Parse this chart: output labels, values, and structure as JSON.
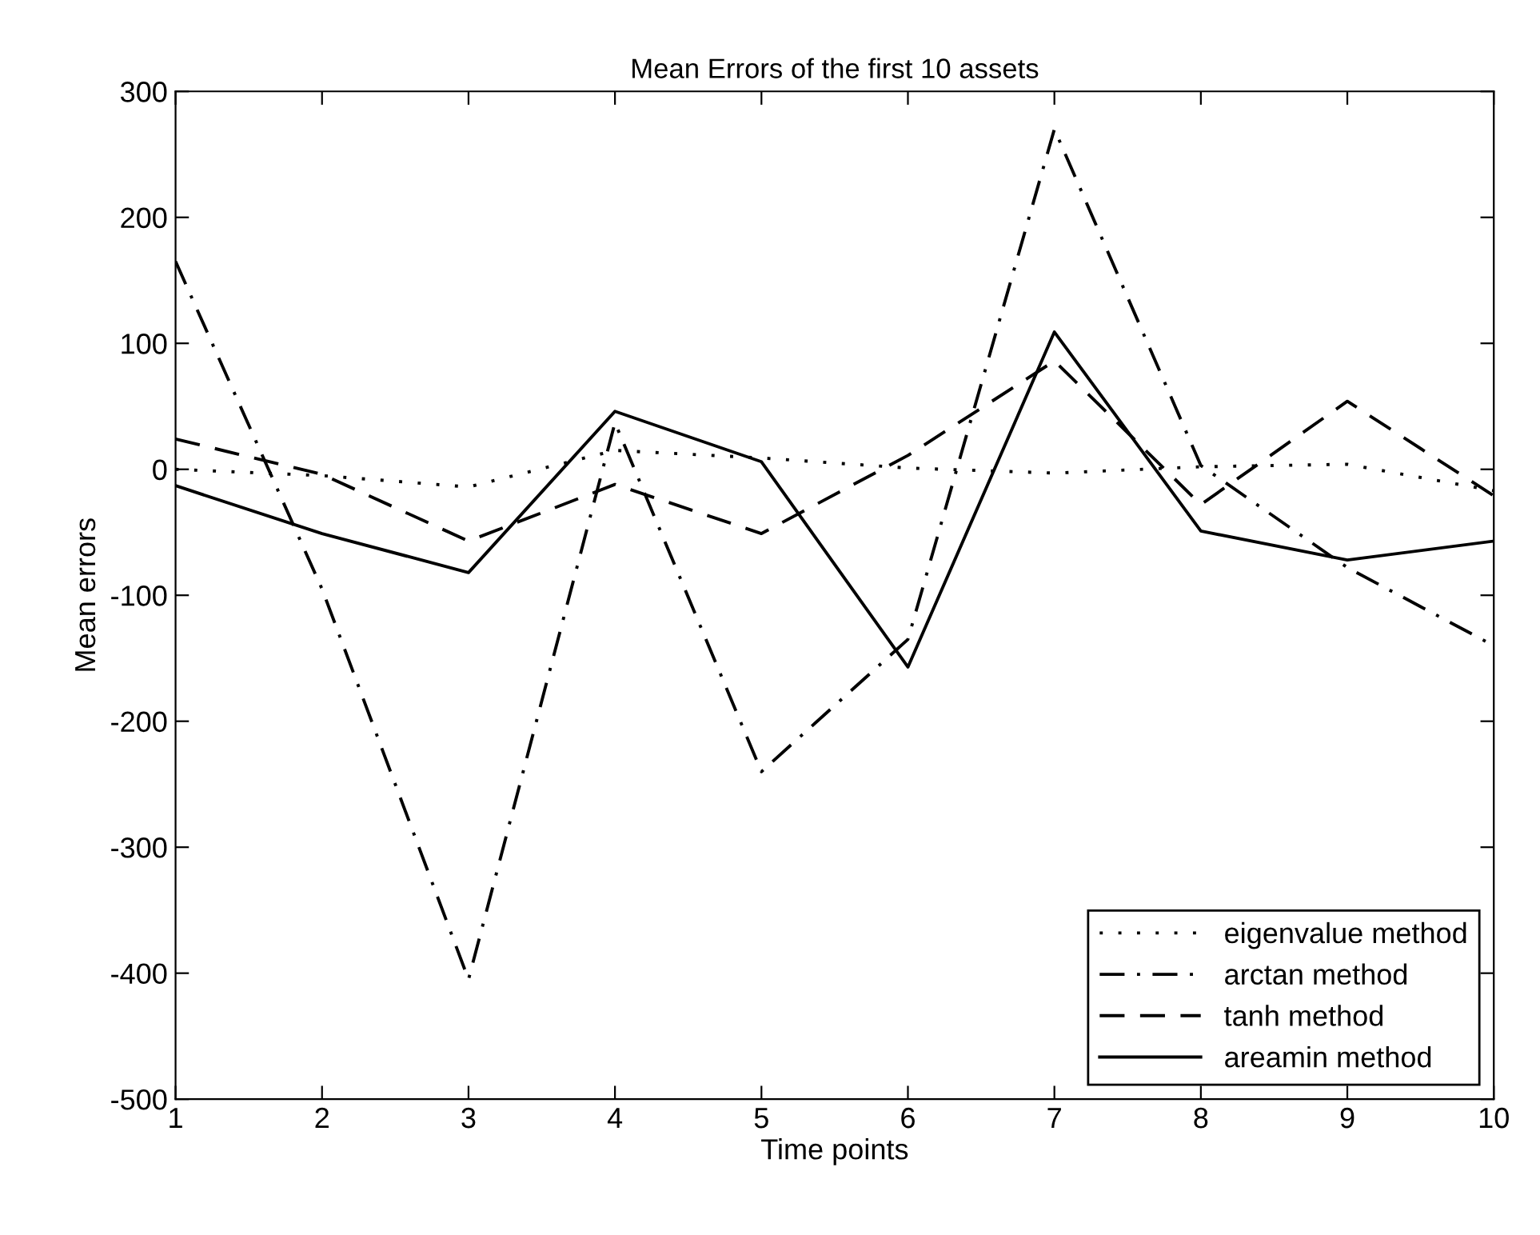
{
  "chart_data": {
    "type": "line",
    "title": "Mean Errors of the first 10 assets",
    "xlabel": "Time points",
    "ylabel": "Mean errors",
    "x": [
      1,
      2,
      3,
      4,
      5,
      6,
      7,
      8,
      9,
      10
    ],
    "series": [
      {
        "name": "eigenvalue method",
        "color": "#000000",
        "line_style": "dotted",
        "values": [
          0,
          -5,
          -14,
          15,
          9,
          1,
          -3,
          2,
          4,
          -17
        ]
      },
      {
        "name": "arctan method",
        "color": "#000000",
        "line_style": "dashdot",
        "values": [
          165,
          -95,
          -405,
          37,
          -240,
          -135,
          270,
          3,
          -78,
          -140
        ]
      },
      {
        "name": "tanh method",
        "color": "#000000",
        "line_style": "dashed",
        "values": [
          24,
          -4,
          -57,
          -12,
          -51,
          11,
          86,
          -28,
          54,
          -21
        ]
      },
      {
        "name": "areamin method",
        "color": "#000000",
        "line_style": "solid",
        "values": [
          -13,
          -51,
          -82,
          46,
          6,
          -157,
          109,
          -49,
          -72,
          -57
        ]
      }
    ],
    "xlim": [
      1,
      10
    ],
    "xticks": [
      1,
      2,
      3,
      4,
      5,
      6,
      7,
      8,
      9,
      10
    ],
    "ylim": [
      -500,
      300
    ],
    "yticks": [
      -500,
      -400,
      -300,
      -200,
      -100,
      0,
      100,
      200,
      300
    ],
    "grid": false,
    "legend": "bottom right",
    "marker": "none"
  }
}
